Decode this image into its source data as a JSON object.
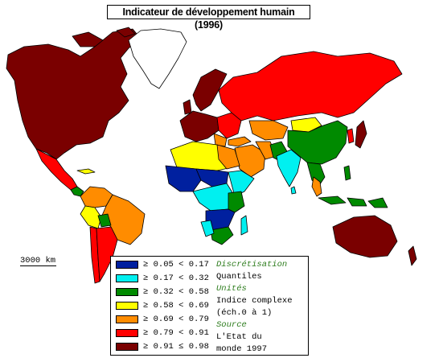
{
  "title": "Indicateur de développement humain (1996)",
  "scale": {
    "label": "3000 km"
  },
  "colors": {
    "c1": "#00209f",
    "c2": "#00f0f0",
    "c3": "#008a00",
    "c4": "#ffff00",
    "c5": "#ff8c00",
    "c6": "#ff0000",
    "c7": "#7a0000",
    "nodata": "#ffffff"
  },
  "legend": {
    "classes": [
      {
        "label": "≥ 0.05 < 0.17",
        "color": "#00209f"
      },
      {
        "label": "≥ 0.17 < 0.32",
        "color": "#00f0f0"
      },
      {
        "label": "≥ 0.32 < 0.58",
        "color": "#008a00"
      },
      {
        "label": "≥ 0.58 < 0.69",
        "color": "#ffff00"
      },
      {
        "label": "≥ 0.69 < 0.79",
        "color": "#ff8c00"
      },
      {
        "label": "≥ 0.79 < 0.91",
        "color": "#ff0000"
      },
      {
        "label": "≥ 0.91 ≤ 0.98",
        "color": "#7a0000"
      }
    ],
    "discretisation_title": "Discrétisation",
    "discretisation_value": "Quantiles",
    "units_title": "Unités",
    "units_value_1": "Indice complexe",
    "units_value_2": "(éch.0 à 1)",
    "source_title": "Source",
    "source_value_1": "L'Etat du",
    "source_value_2": "monde 1997"
  }
}
